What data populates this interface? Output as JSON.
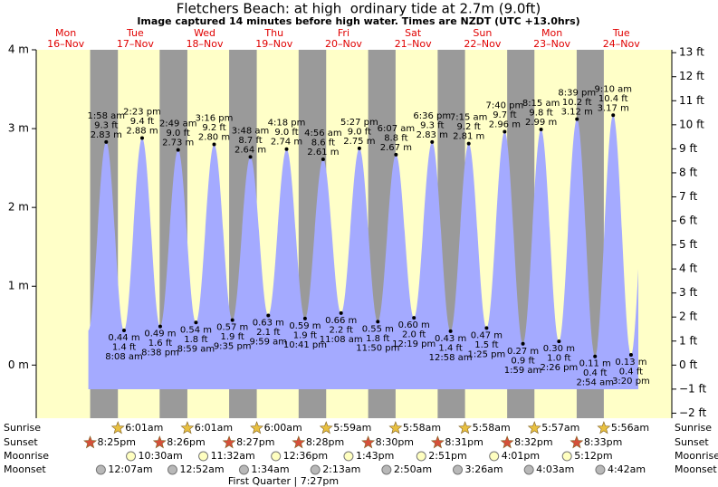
{
  "chart_data": {
    "type": "area",
    "title": "Fletchers Beach: at high  ordinary tide at 2.7m (9.0ft)",
    "subtitle": "Image captured 14 minutes before high water. Times are NZDT (UTC +13.0hrs)",
    "day_names": [
      "Mon",
      "Tue",
      "Wed",
      "Thu",
      "Fri",
      "Sat",
      "Sun",
      "Mon",
      "Tue"
    ],
    "day_dates": [
      "16–Nov",
      "17–Nov",
      "18–Nov",
      "19–Nov",
      "20–Nov",
      "21–Nov",
      "22–Nov",
      "23–Nov",
      "24–Nov"
    ],
    "x": [
      "1:58 am",
      "8:08 am",
      "2:23 pm",
      "8:38 pm",
      "2:49 am",
      "8:59 am",
      "3:16 pm",
      "9:35 pm",
      "3:48 am",
      "9:59 am",
      "4:18 pm",
      "10:41 pm",
      "4:56 am",
      "11:08 am",
      "5:27 pm",
      "11:50 pm",
      "6:07 am",
      "12:19 pm",
      "6:36 pm",
      "12:58 am",
      "7:15 am",
      "1:25 pm",
      "7:40 pm",
      "1:59 am",
      "8:15 am",
      "2:26 pm",
      "8:39 pm",
      "2:54 am",
      "9:10 am",
      "3:20 pm"
    ],
    "values": [
      2.83,
      0.44,
      2.88,
      0.49,
      2.73,
      0.54,
      2.8,
      0.57,
      2.64,
      0.63,
      2.74,
      0.59,
      2.61,
      0.66,
      2.75,
      0.55,
      2.67,
      0.6,
      2.83,
      0.43,
      2.81,
      0.47,
      2.96,
      0.27,
      2.99,
      0.3,
      3.12,
      0.11,
      3.17,
      0.13
    ],
    "value_labels": [
      "2.83 m",
      "0.44 m",
      "2.88 m",
      "0.49 m",
      "2.73 m",
      "0.54 m",
      "2.80 m",
      "0.57 m",
      "2.64 m",
      "0.63 m",
      "2.74 m",
      "0.59 m",
      "2.61 m",
      "0.66 m",
      "2.75 m",
      "0.55 m",
      "2.67 m",
      "0.60 m",
      "2.83 m",
      "0.43 m",
      "2.81 m",
      "0.47 m",
      "2.96 m",
      "0.27 m",
      "2.99 m",
      "0.30 m",
      "3.12 m",
      "0.11 m",
      "3.17 m",
      "0.13 m"
    ],
    "ft_labels": [
      "9.3 ft",
      "1.4 ft",
      "9.4 ft",
      "1.6 ft",
      "9.0 ft",
      "1.8 ft",
      "9.2 ft",
      "1.9 ft",
      "8.7 ft",
      "2.1 ft",
      "9.0 ft",
      "1.9 ft",
      "8.6 ft",
      "2.2 ft",
      "9.0 ft",
      "1.8 ft",
      "8.8 ft",
      "2.0 ft",
      "9.3 ft",
      "1.4 ft",
      "9.2 ft",
      "1.5 ft",
      "9.7 ft",
      "0.9 ft",
      "9.8 ft",
      "1.0 ft",
      "10.2 ft",
      "0.4 ft",
      "10.4 ft",
      "0.4 ft"
    ],
    "color": "#a4aaff",
    "ylim": [
      -0.674,
      4
    ],
    "yticks": [
      {
        "value": 4,
        "label": "4 m"
      },
      {
        "value": 3,
        "label": "3 m"
      },
      {
        "value": 2,
        "label": "2 m"
      },
      {
        "value": 1,
        "label": "1 m"
      },
      {
        "value": 0,
        "label": "0 m"
      }
    ],
    "y2lim": [
      -2.21,
      13.12
    ],
    "y2ticks": [
      {
        "value": 13,
        "label": "13 ft"
      },
      {
        "value": 12,
        "label": "12 ft"
      },
      {
        "value": 11,
        "label": "11 ft"
      },
      {
        "value": 10,
        "label": "10 ft"
      },
      {
        "value": 9,
        "label": "9 ft"
      },
      {
        "value": 8,
        "label": "8 ft"
      },
      {
        "value": 7,
        "label": "7 ft"
      },
      {
        "value": 6,
        "label": "6 ft"
      },
      {
        "value": 5,
        "label": "5 ft"
      },
      {
        "value": 4,
        "label": "4 ft"
      },
      {
        "value": 3,
        "label": "3 ft"
      },
      {
        "value": 2,
        "label": "2 ft"
      },
      {
        "value": 1,
        "label": "1 ft"
      },
      {
        "value": 0,
        "label": "0 ft"
      },
      {
        "value": -1,
        "label": "−1 ft"
      },
      {
        "value": -2,
        "label": "−2 ft"
      }
    ],
    "rows": [
      {
        "label": "Sunrise",
        "times": [
          "6:01am",
          "6:01am",
          "6:00am",
          "5:59am",
          "5:58am",
          "5:58am",
          "5:57am",
          "5:56am"
        ]
      },
      {
        "label": "Sunset",
        "times": [
          "8:25pm",
          "8:26pm",
          "8:27pm",
          "8:28pm",
          "8:30pm",
          "8:31pm",
          "8:32pm",
          "8:33pm"
        ]
      },
      {
        "label": "Moonrise",
        "times": [
          "10:30am",
          "11:32am",
          "12:36pm",
          "1:43pm",
          "2:51pm",
          "4:01pm",
          "5:12pm"
        ]
      },
      {
        "label": "Moonset",
        "times": [
          "12:07am",
          "12:52am",
          "1:34am",
          "2:13am",
          "2:50am",
          "3:26am",
          "4:03am",
          "4:42am"
        ]
      }
    ],
    "moon_phase": "First Quarter | 7:27pm"
  }
}
